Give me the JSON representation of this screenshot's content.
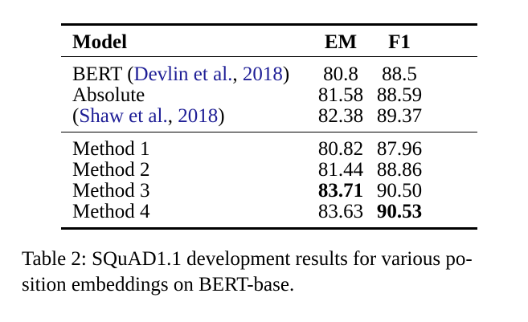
{
  "page": {
    "background": "#ffffff",
    "text_color": "#000000",
    "link_color": "#1e1e96"
  },
  "table": {
    "header": {
      "model": "Model",
      "em": "EM",
      "f1": "F1"
    },
    "group1": {
      "rows": [
        {
          "model_prefix": "BERT (",
          "cite_author": "Devlin et al.",
          "cite_sep": ", ",
          "cite_year": "2018",
          "model_suffix": ")",
          "em": "80.8",
          "f1": "88.5"
        },
        {
          "model": "Absolute",
          "em": "81.58",
          "f1": "88.59"
        },
        {
          "model_prefix": "(",
          "cite_author": "Shaw et al.",
          "cite_sep": ", ",
          "cite_year": "2018",
          "model_suffix": ")",
          "em": "82.38",
          "f1": "89.37"
        }
      ]
    },
    "group2": {
      "rows": [
        {
          "model": "Method 1",
          "em": "80.82",
          "f1": "87.96"
        },
        {
          "model": "Method 2",
          "em": "81.44",
          "f1": "88.86"
        },
        {
          "model": "Method 3",
          "em": "83.71",
          "f1": "90.50"
        },
        {
          "model": "Method 4",
          "em": "83.63",
          "f1": "90.53"
        }
      ]
    }
  },
  "caption": {
    "line1": "Table 2: SQuAD1.1 development results for various po-",
    "line2": "sition embeddings on BERT-base."
  }
}
